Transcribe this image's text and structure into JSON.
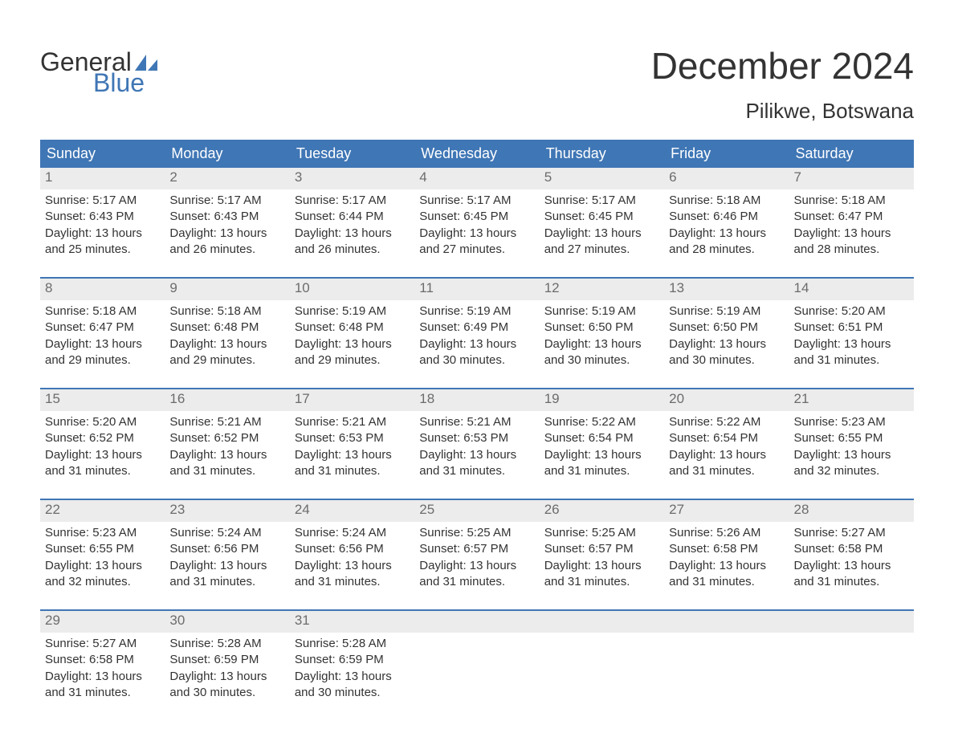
{
  "logo": {
    "text1": "General",
    "text2": "Blue"
  },
  "title": "December 2024",
  "location": "Pilikwe, Botswana",
  "colors": {
    "brand_blue": "#3f76b5",
    "header_text": "#ffffff",
    "daynum_bg": "#ececec",
    "daynum_fg": "#6c6c6c",
    "body_text": "#333333",
    "background": "#ffffff"
  },
  "typography": {
    "title_fontsize": 46,
    "location_fontsize": 26,
    "header_fontsize": 18,
    "daynum_fontsize": 17,
    "body_fontsize": 15,
    "font_family": "Arial"
  },
  "layout": {
    "columns": 7,
    "rows": 5,
    "week_divider_color": "#3f76b5",
    "week_divider_width": 2
  },
  "day_headers": [
    "Sunday",
    "Monday",
    "Tuesday",
    "Wednesday",
    "Thursday",
    "Friday",
    "Saturday"
  ],
  "weeks": [
    [
      {
        "n": "1",
        "sunrise": "Sunrise: 5:17 AM",
        "sunset": "Sunset: 6:43 PM",
        "d1": "Daylight: 13 hours",
        "d2": "and 25 minutes."
      },
      {
        "n": "2",
        "sunrise": "Sunrise: 5:17 AM",
        "sunset": "Sunset: 6:43 PM",
        "d1": "Daylight: 13 hours",
        "d2": "and 26 minutes."
      },
      {
        "n": "3",
        "sunrise": "Sunrise: 5:17 AM",
        "sunset": "Sunset: 6:44 PM",
        "d1": "Daylight: 13 hours",
        "d2": "and 26 minutes."
      },
      {
        "n": "4",
        "sunrise": "Sunrise: 5:17 AM",
        "sunset": "Sunset: 6:45 PM",
        "d1": "Daylight: 13 hours",
        "d2": "and 27 minutes."
      },
      {
        "n": "5",
        "sunrise": "Sunrise: 5:17 AM",
        "sunset": "Sunset: 6:45 PM",
        "d1": "Daylight: 13 hours",
        "d2": "and 27 minutes."
      },
      {
        "n": "6",
        "sunrise": "Sunrise: 5:18 AM",
        "sunset": "Sunset: 6:46 PM",
        "d1": "Daylight: 13 hours",
        "d2": "and 28 minutes."
      },
      {
        "n": "7",
        "sunrise": "Sunrise: 5:18 AM",
        "sunset": "Sunset: 6:47 PM",
        "d1": "Daylight: 13 hours",
        "d2": "and 28 minutes."
      }
    ],
    [
      {
        "n": "8",
        "sunrise": "Sunrise: 5:18 AM",
        "sunset": "Sunset: 6:47 PM",
        "d1": "Daylight: 13 hours",
        "d2": "and 29 minutes."
      },
      {
        "n": "9",
        "sunrise": "Sunrise: 5:18 AM",
        "sunset": "Sunset: 6:48 PM",
        "d1": "Daylight: 13 hours",
        "d2": "and 29 minutes."
      },
      {
        "n": "10",
        "sunrise": "Sunrise: 5:19 AM",
        "sunset": "Sunset: 6:48 PM",
        "d1": "Daylight: 13 hours",
        "d2": "and 29 minutes."
      },
      {
        "n": "11",
        "sunrise": "Sunrise: 5:19 AM",
        "sunset": "Sunset: 6:49 PM",
        "d1": "Daylight: 13 hours",
        "d2": "and 30 minutes."
      },
      {
        "n": "12",
        "sunrise": "Sunrise: 5:19 AM",
        "sunset": "Sunset: 6:50 PM",
        "d1": "Daylight: 13 hours",
        "d2": "and 30 minutes."
      },
      {
        "n": "13",
        "sunrise": "Sunrise: 5:19 AM",
        "sunset": "Sunset: 6:50 PM",
        "d1": "Daylight: 13 hours",
        "d2": "and 30 minutes."
      },
      {
        "n": "14",
        "sunrise": "Sunrise: 5:20 AM",
        "sunset": "Sunset: 6:51 PM",
        "d1": "Daylight: 13 hours",
        "d2": "and 31 minutes."
      }
    ],
    [
      {
        "n": "15",
        "sunrise": "Sunrise: 5:20 AM",
        "sunset": "Sunset: 6:52 PM",
        "d1": "Daylight: 13 hours",
        "d2": "and 31 minutes."
      },
      {
        "n": "16",
        "sunrise": "Sunrise: 5:21 AM",
        "sunset": "Sunset: 6:52 PM",
        "d1": "Daylight: 13 hours",
        "d2": "and 31 minutes."
      },
      {
        "n": "17",
        "sunrise": "Sunrise: 5:21 AM",
        "sunset": "Sunset: 6:53 PM",
        "d1": "Daylight: 13 hours",
        "d2": "and 31 minutes."
      },
      {
        "n": "18",
        "sunrise": "Sunrise: 5:21 AM",
        "sunset": "Sunset: 6:53 PM",
        "d1": "Daylight: 13 hours",
        "d2": "and 31 minutes."
      },
      {
        "n": "19",
        "sunrise": "Sunrise: 5:22 AM",
        "sunset": "Sunset: 6:54 PM",
        "d1": "Daylight: 13 hours",
        "d2": "and 31 minutes."
      },
      {
        "n": "20",
        "sunrise": "Sunrise: 5:22 AM",
        "sunset": "Sunset: 6:54 PM",
        "d1": "Daylight: 13 hours",
        "d2": "and 31 minutes."
      },
      {
        "n": "21",
        "sunrise": "Sunrise: 5:23 AM",
        "sunset": "Sunset: 6:55 PM",
        "d1": "Daylight: 13 hours",
        "d2": "and 32 minutes."
      }
    ],
    [
      {
        "n": "22",
        "sunrise": "Sunrise: 5:23 AM",
        "sunset": "Sunset: 6:55 PM",
        "d1": "Daylight: 13 hours",
        "d2": "and 32 minutes."
      },
      {
        "n": "23",
        "sunrise": "Sunrise: 5:24 AM",
        "sunset": "Sunset: 6:56 PM",
        "d1": "Daylight: 13 hours",
        "d2": "and 31 minutes."
      },
      {
        "n": "24",
        "sunrise": "Sunrise: 5:24 AM",
        "sunset": "Sunset: 6:56 PM",
        "d1": "Daylight: 13 hours",
        "d2": "and 31 minutes."
      },
      {
        "n": "25",
        "sunrise": "Sunrise: 5:25 AM",
        "sunset": "Sunset: 6:57 PM",
        "d1": "Daylight: 13 hours",
        "d2": "and 31 minutes."
      },
      {
        "n": "26",
        "sunrise": "Sunrise: 5:25 AM",
        "sunset": "Sunset: 6:57 PM",
        "d1": "Daylight: 13 hours",
        "d2": "and 31 minutes."
      },
      {
        "n": "27",
        "sunrise": "Sunrise: 5:26 AM",
        "sunset": "Sunset: 6:58 PM",
        "d1": "Daylight: 13 hours",
        "d2": "and 31 minutes."
      },
      {
        "n": "28",
        "sunrise": "Sunrise: 5:27 AM",
        "sunset": "Sunset: 6:58 PM",
        "d1": "Daylight: 13 hours",
        "d2": "and 31 minutes."
      }
    ],
    [
      {
        "n": "29",
        "sunrise": "Sunrise: 5:27 AM",
        "sunset": "Sunset: 6:58 PM",
        "d1": "Daylight: 13 hours",
        "d2": "and 31 minutes."
      },
      {
        "n": "30",
        "sunrise": "Sunrise: 5:28 AM",
        "sunset": "Sunset: 6:59 PM",
        "d1": "Daylight: 13 hours",
        "d2": "and 30 minutes."
      },
      {
        "n": "31",
        "sunrise": "Sunrise: 5:28 AM",
        "sunset": "Sunset: 6:59 PM",
        "d1": "Daylight: 13 hours",
        "d2": "and 30 minutes."
      },
      {
        "n": "",
        "sunrise": "",
        "sunset": "",
        "d1": "",
        "d2": ""
      },
      {
        "n": "",
        "sunrise": "",
        "sunset": "",
        "d1": "",
        "d2": ""
      },
      {
        "n": "",
        "sunrise": "",
        "sunset": "",
        "d1": "",
        "d2": ""
      },
      {
        "n": "",
        "sunrise": "",
        "sunset": "",
        "d1": "",
        "d2": ""
      }
    ]
  ]
}
